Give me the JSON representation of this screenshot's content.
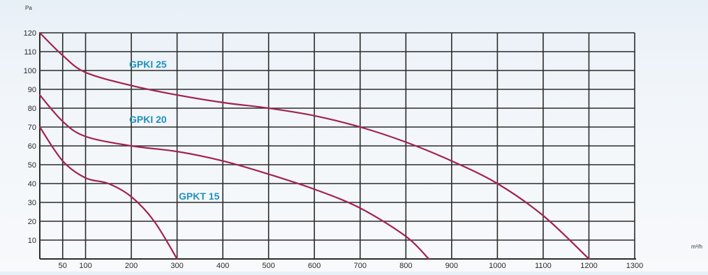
{
  "chart_data": {
    "type": "line",
    "title": "",
    "xlabel": "m³/h",
    "ylabel": "Pa",
    "xlim": [
      0,
      1300
    ],
    "ylim": [
      0,
      120
    ],
    "x_ticks": [
      50,
      100,
      200,
      300,
      400,
      500,
      600,
      700,
      800,
      900,
      1000,
      1100,
      1200,
      1300
    ],
    "x_tick_labels": [
      "50",
      "100",
      "200",
      "300",
      "400",
      "500",
      "600",
      "700",
      "800",
      "900",
      "1000",
      "1100",
      "1200",
      "1300"
    ],
    "y_ticks": [
      10,
      20,
      30,
      40,
      50,
      60,
      70,
      80,
      90,
      100,
      110,
      120
    ],
    "y_tick_labels": [
      "10",
      "20",
      "30",
      "40",
      "50",
      "60",
      "70",
      "80",
      "90",
      "100",
      "110",
      "120"
    ],
    "grid": true,
    "colors": {
      "grid": "#2b2b2b",
      "curve": "#a3224e",
      "label": "#1e8fc0",
      "tick": "#2a2a2a"
    },
    "series": [
      {
        "name": "GPKI 25",
        "x": [
          0,
          50,
          100,
          200,
          300,
          400,
          500,
          600,
          700,
          800,
          900,
          1000,
          1100,
          1200
        ],
        "y": [
          120,
          108,
          99,
          92,
          87,
          83,
          80,
          76,
          70,
          62,
          52,
          40,
          23,
          0
        ]
      },
      {
        "name": "GPKI 20",
        "x": [
          0,
          50,
          100,
          200,
          300,
          400,
          500,
          600,
          700,
          800,
          850
        ],
        "y": [
          87,
          73,
          65,
          60,
          57,
          52,
          45,
          37,
          27,
          12,
          0
        ]
      },
      {
        "name": "GPKT 15",
        "x": [
          0,
          50,
          100,
          150,
          200,
          250,
          300
        ],
        "y": [
          70,
          52,
          43,
          40,
          33,
          20,
          0
        ]
      }
    ]
  }
}
